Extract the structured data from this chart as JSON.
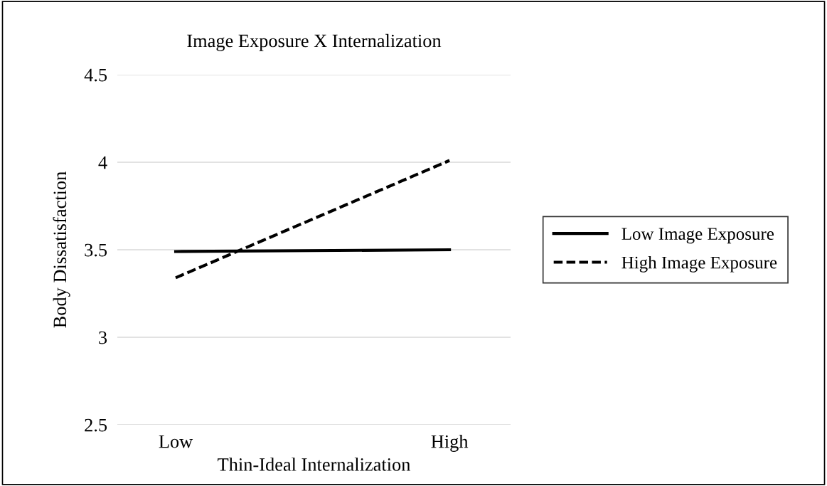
{
  "chart_data": {
    "type": "line",
    "title": "Image Exposure X Internalization",
    "xlabel": "Thin-Ideal Internalization",
    "ylabel": "Body Dissatisfaction",
    "categories": [
      "Low",
      "High"
    ],
    "series": [
      {
        "name": "Low Image Exposure",
        "color": "#000000",
        "values": [
          3.49,
          3.5
        ],
        "line_style": "solid"
      },
      {
        "name": "High Image Exposure",
        "color": "#000000",
        "values": [
          3.34,
          4.01
        ],
        "line_style": "dashed"
      }
    ],
    "ylim": [
      2.5,
      4.5
    ],
    "yticks": [
      2.5,
      3,
      3.5,
      4,
      4.5
    ],
    "grid": "y",
    "legend": "right",
    "marker": "none"
  }
}
